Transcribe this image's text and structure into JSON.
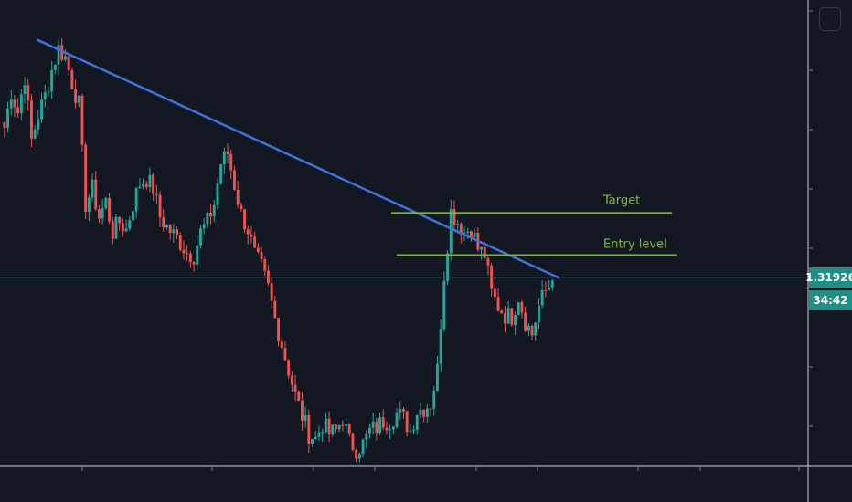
{
  "colors": {
    "background": "#131722",
    "up_candle": "#26a69a",
    "down_candle": "#ef5350",
    "trendline": "#3f73d9",
    "level_line": "#7cb342",
    "price_line": "#2a6f73",
    "price_tag": "#1f8f86",
    "axis_line": "#c9ccd3",
    "tick": "#787b86"
  },
  "annotations": {
    "target_label": "Target",
    "entry_label": "Entry level"
  },
  "price_scale": {
    "current_price": "1.31926",
    "countdown": "34:42"
  },
  "chart_data": {
    "type": "candlestick",
    "title": "",
    "xlabel": "",
    "ylabel": "",
    "ylim": [
      1.3045,
      1.341
    ],
    "current_price": 1.31926,
    "levels": [
      {
        "name": "Target",
        "value": 1.3243
      },
      {
        "name": "Entry level",
        "value": 1.321
      }
    ],
    "trendline": {
      "from": {
        "bar": 0,
        "value": 1.3379
      },
      "to": {
        "bar": 146,
        "value": 1.3192
      }
    },
    "close_path": [
      1.331,
      1.3338,
      1.3322,
      1.335,
      1.33,
      1.332,
      1.3335,
      1.3355,
      1.3372,
      1.3365,
      1.3345,
      1.3328,
      1.325,
      1.3262,
      1.324,
      1.3252,
      1.3228,
      1.3236,
      1.323,
      1.325,
      1.3266,
      1.327,
      1.3262,
      1.324,
      1.3232,
      1.3226,
      1.322,
      1.3212,
      1.321,
      1.3228,
      1.3236,
      1.325,
      1.3282,
      1.329,
      1.3265,
      1.3242,
      1.323,
      1.321,
      1.32,
      1.3184,
      1.316,
      1.314,
      1.312,
      1.31,
      1.3084,
      1.307,
      1.3066,
      1.3078,
      1.307,
      1.3072,
      1.3082,
      1.3064,
      1.3058,
      1.3062,
      1.3072,
      1.3075,
      1.308,
      1.308,
      1.3086,
      1.3082,
      1.3072,
      1.3088,
      1.309,
      1.3094,
      1.312,
      1.3195,
      1.3244,
      1.3236,
      1.3228,
      1.3232,
      1.3215,
      1.321,
      1.318,
      1.317,
      1.3163,
      1.3162,
      1.3178,
      1.3158,
      1.3148,
      1.317,
      1.3182,
      1.319
    ],
    "series": [
      {
        "name": "Target",
        "values": [
          1.3243
        ]
      },
      {
        "name": "Entry level",
        "values": [
          1.321
        ]
      }
    ],
    "grid": false
  }
}
